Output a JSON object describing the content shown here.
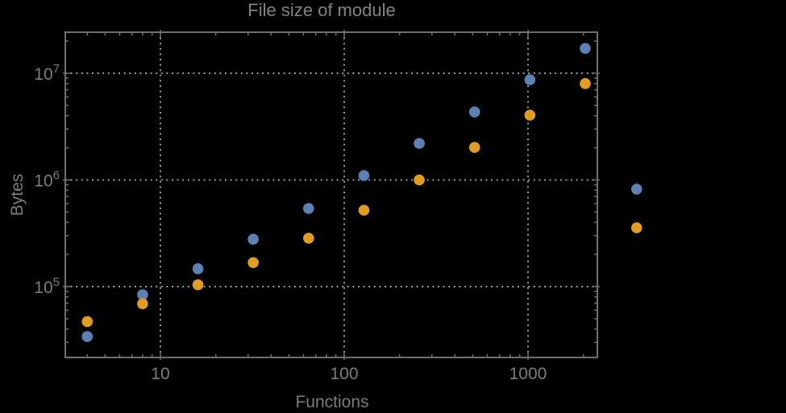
{
  "chart_data": {
    "type": "scatter",
    "title": "File size of module",
    "xlabel": "Functions",
    "ylabel": "Bytes",
    "x_scale": "log",
    "y_scale": "log",
    "grid": "dotted lines at labeled major ticks, frame ticks on all four sides",
    "legend": "none",
    "xlim_log10": [
      0.4825,
      3.3772
    ],
    "ylim_log10": [
      4.3358,
      7.3849
    ],
    "x_major_ticks": [
      {
        "value": 10,
        "label": "10"
      },
      {
        "value": 100,
        "label": "100"
      },
      {
        "value": 1000,
        "label": "1000"
      }
    ],
    "y_major_ticks": [
      {
        "exponent": 5,
        "base": "10"
      },
      {
        "exponent": 6,
        "base": "10"
      },
      {
        "exponent": 7,
        "base": "10"
      }
    ],
    "x": [
      4,
      8,
      16,
      32,
      64,
      128,
      256,
      512,
      1024,
      2048,
      3900
    ],
    "series": [
      {
        "name": "series-1-blue",
        "color": "#5E81B5",
        "values": [
          34000,
          84000,
          147000,
          278000,
          540000,
          1100000,
          2200000,
          4340000,
          8700000,
          17100000,
          820000
        ]
      },
      {
        "name": "series-2-orange",
        "color": "#E19C24",
        "values": [
          47000,
          69000,
          104000,
          168000,
          284000,
          520000,
          1000000,
          2020000,
          4050000,
          8000000,
          356000
        ]
      }
    ]
  },
  "style": {
    "background": "#000000",
    "frame_color": "#6F6F6F",
    "grid_color": "#9B9B9B",
    "tick_color": "#6F6F6F",
    "text_color": "#7C7C7C",
    "title_color": "#828282"
  }
}
